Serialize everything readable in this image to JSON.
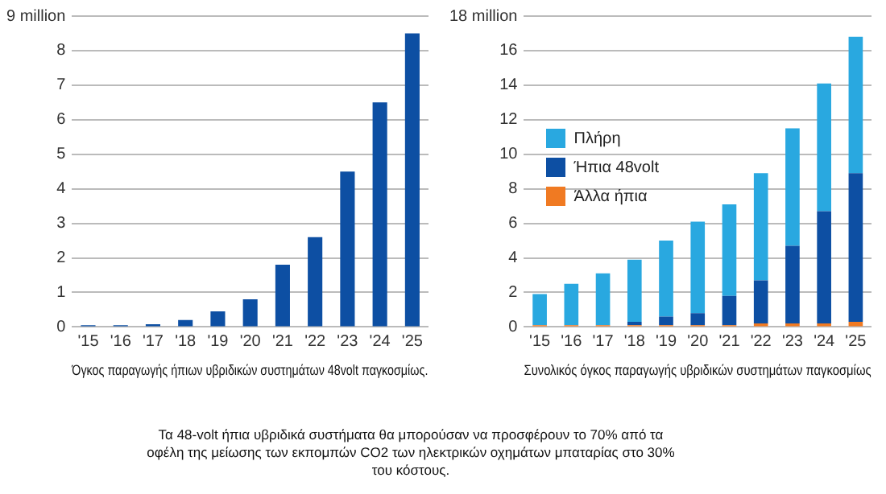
{
  "chart_data": [
    {
      "type": "bar",
      "xlabel": "Όγκος παραγωγής ήπιων υβριδικών συστημάτων 48volt παγκοσμίως.",
      "categories": [
        "'15",
        "'16",
        "'17",
        "'18",
        "'19",
        "'20",
        "'21",
        "'22",
        "'23",
        "'24",
        "'25"
      ],
      "values": [
        0.05,
        0.05,
        0.08,
        0.2,
        0.45,
        0.8,
        1.8,
        2.6,
        4.5,
        6.5,
        8.5
      ],
      "color": "#0d4fa3",
      "ylim": [
        0,
        9
      ],
      "yticks": [
        0,
        1,
        2,
        3,
        4,
        5,
        6,
        7,
        8,
        {
          "value": 9,
          "label": "9 million"
        }
      ],
      "grid": "y",
      "annotations": [
        "Τα 48-volt ήπια υβριδικά συστήματα θα μπορούσαν να προσφέρουν το 70% από τα οφέλη της μείωσης των εκπομπών CO2 των ηλεκτρικών οχημάτων μπαταρίας στο 30% του κόστους."
      ]
    },
    {
      "type": "bar",
      "stacked": true,
      "xlabel": "Συνολικός όγκος παραγωγής υβριδικών συστημάτων παγκοσμίως",
      "categories": [
        "'15",
        "'16",
        "'17",
        "'18",
        "'19",
        "'20",
        "'21",
        "'22",
        "'23",
        "'24",
        "'25"
      ],
      "series": [
        {
          "name": "Άλλα ήπια",
          "color": "#f07a22",
          "values": [
            0.1,
            0.1,
            0.1,
            0.1,
            0.1,
            0.1,
            0.1,
            0.2,
            0.2,
            0.2,
            0.3
          ]
        },
        {
          "name": "Ήπια 48volt",
          "color": "#0d4fa3",
          "values": [
            0,
            0,
            0,
            0.2,
            0.5,
            0.7,
            1.7,
            2.5,
            4.5,
            6.5,
            8.6
          ]
        },
        {
          "name": "Πλήρη",
          "color": "#29a8e0",
          "values": [
            1.8,
            2.4,
            3.0,
            3.6,
            4.4,
            5.3,
            5.3,
            6.2,
            6.8,
            7.4,
            7.9
          ]
        }
      ],
      "ylim": [
        0,
        18
      ],
      "yticks": [
        0,
        2,
        4,
        6,
        8,
        10,
        12,
        14,
        16,
        {
          "value": 18,
          "label": "18 million"
        }
      ],
      "grid": "y",
      "legend": "top left"
    }
  ]
}
